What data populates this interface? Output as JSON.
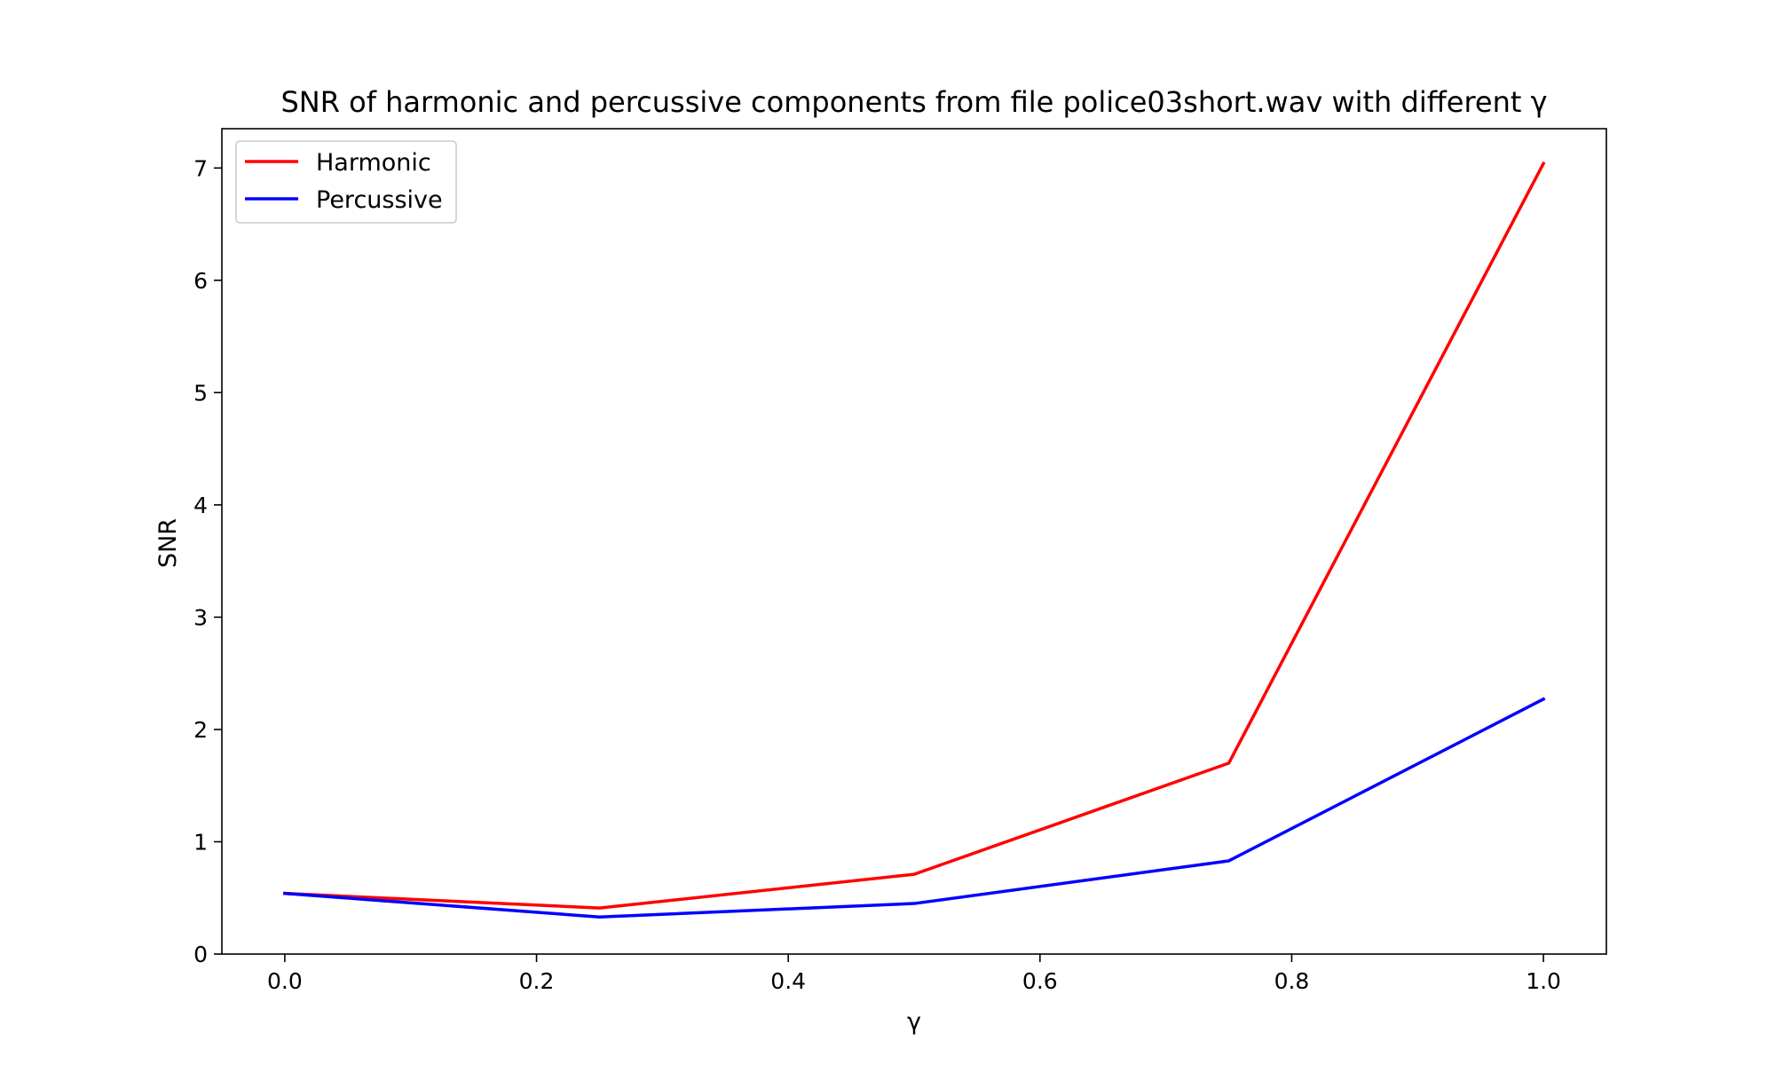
{
  "chart_data": {
    "type": "line",
    "title": "SNR of harmonic and percussive components from file police03short.wav with different γ",
    "xlabel": "γ",
    "ylabel": "SNR",
    "x": [
      0.0,
      0.25,
      0.5,
      0.75,
      1.0
    ],
    "xlim": [
      -0.05,
      1.05
    ],
    "ylim": [
      0,
      7.35
    ],
    "xticks": [
      "0.0",
      "0.2",
      "0.4",
      "0.6",
      "0.8",
      "1.0"
    ],
    "yticks": [
      "0",
      "1",
      "2",
      "3",
      "4",
      "5",
      "6",
      "7"
    ],
    "grid": false,
    "legend_position": "upper-left",
    "series": [
      {
        "name": "Harmonic",
        "color": "#ff0000",
        "values": [
          0.54,
          0.41,
          0.71,
          1.7,
          7.04
        ]
      },
      {
        "name": "Percussive",
        "color": "#0000ff",
        "values": [
          0.54,
          0.33,
          0.45,
          0.83,
          2.27
        ]
      }
    ]
  }
}
